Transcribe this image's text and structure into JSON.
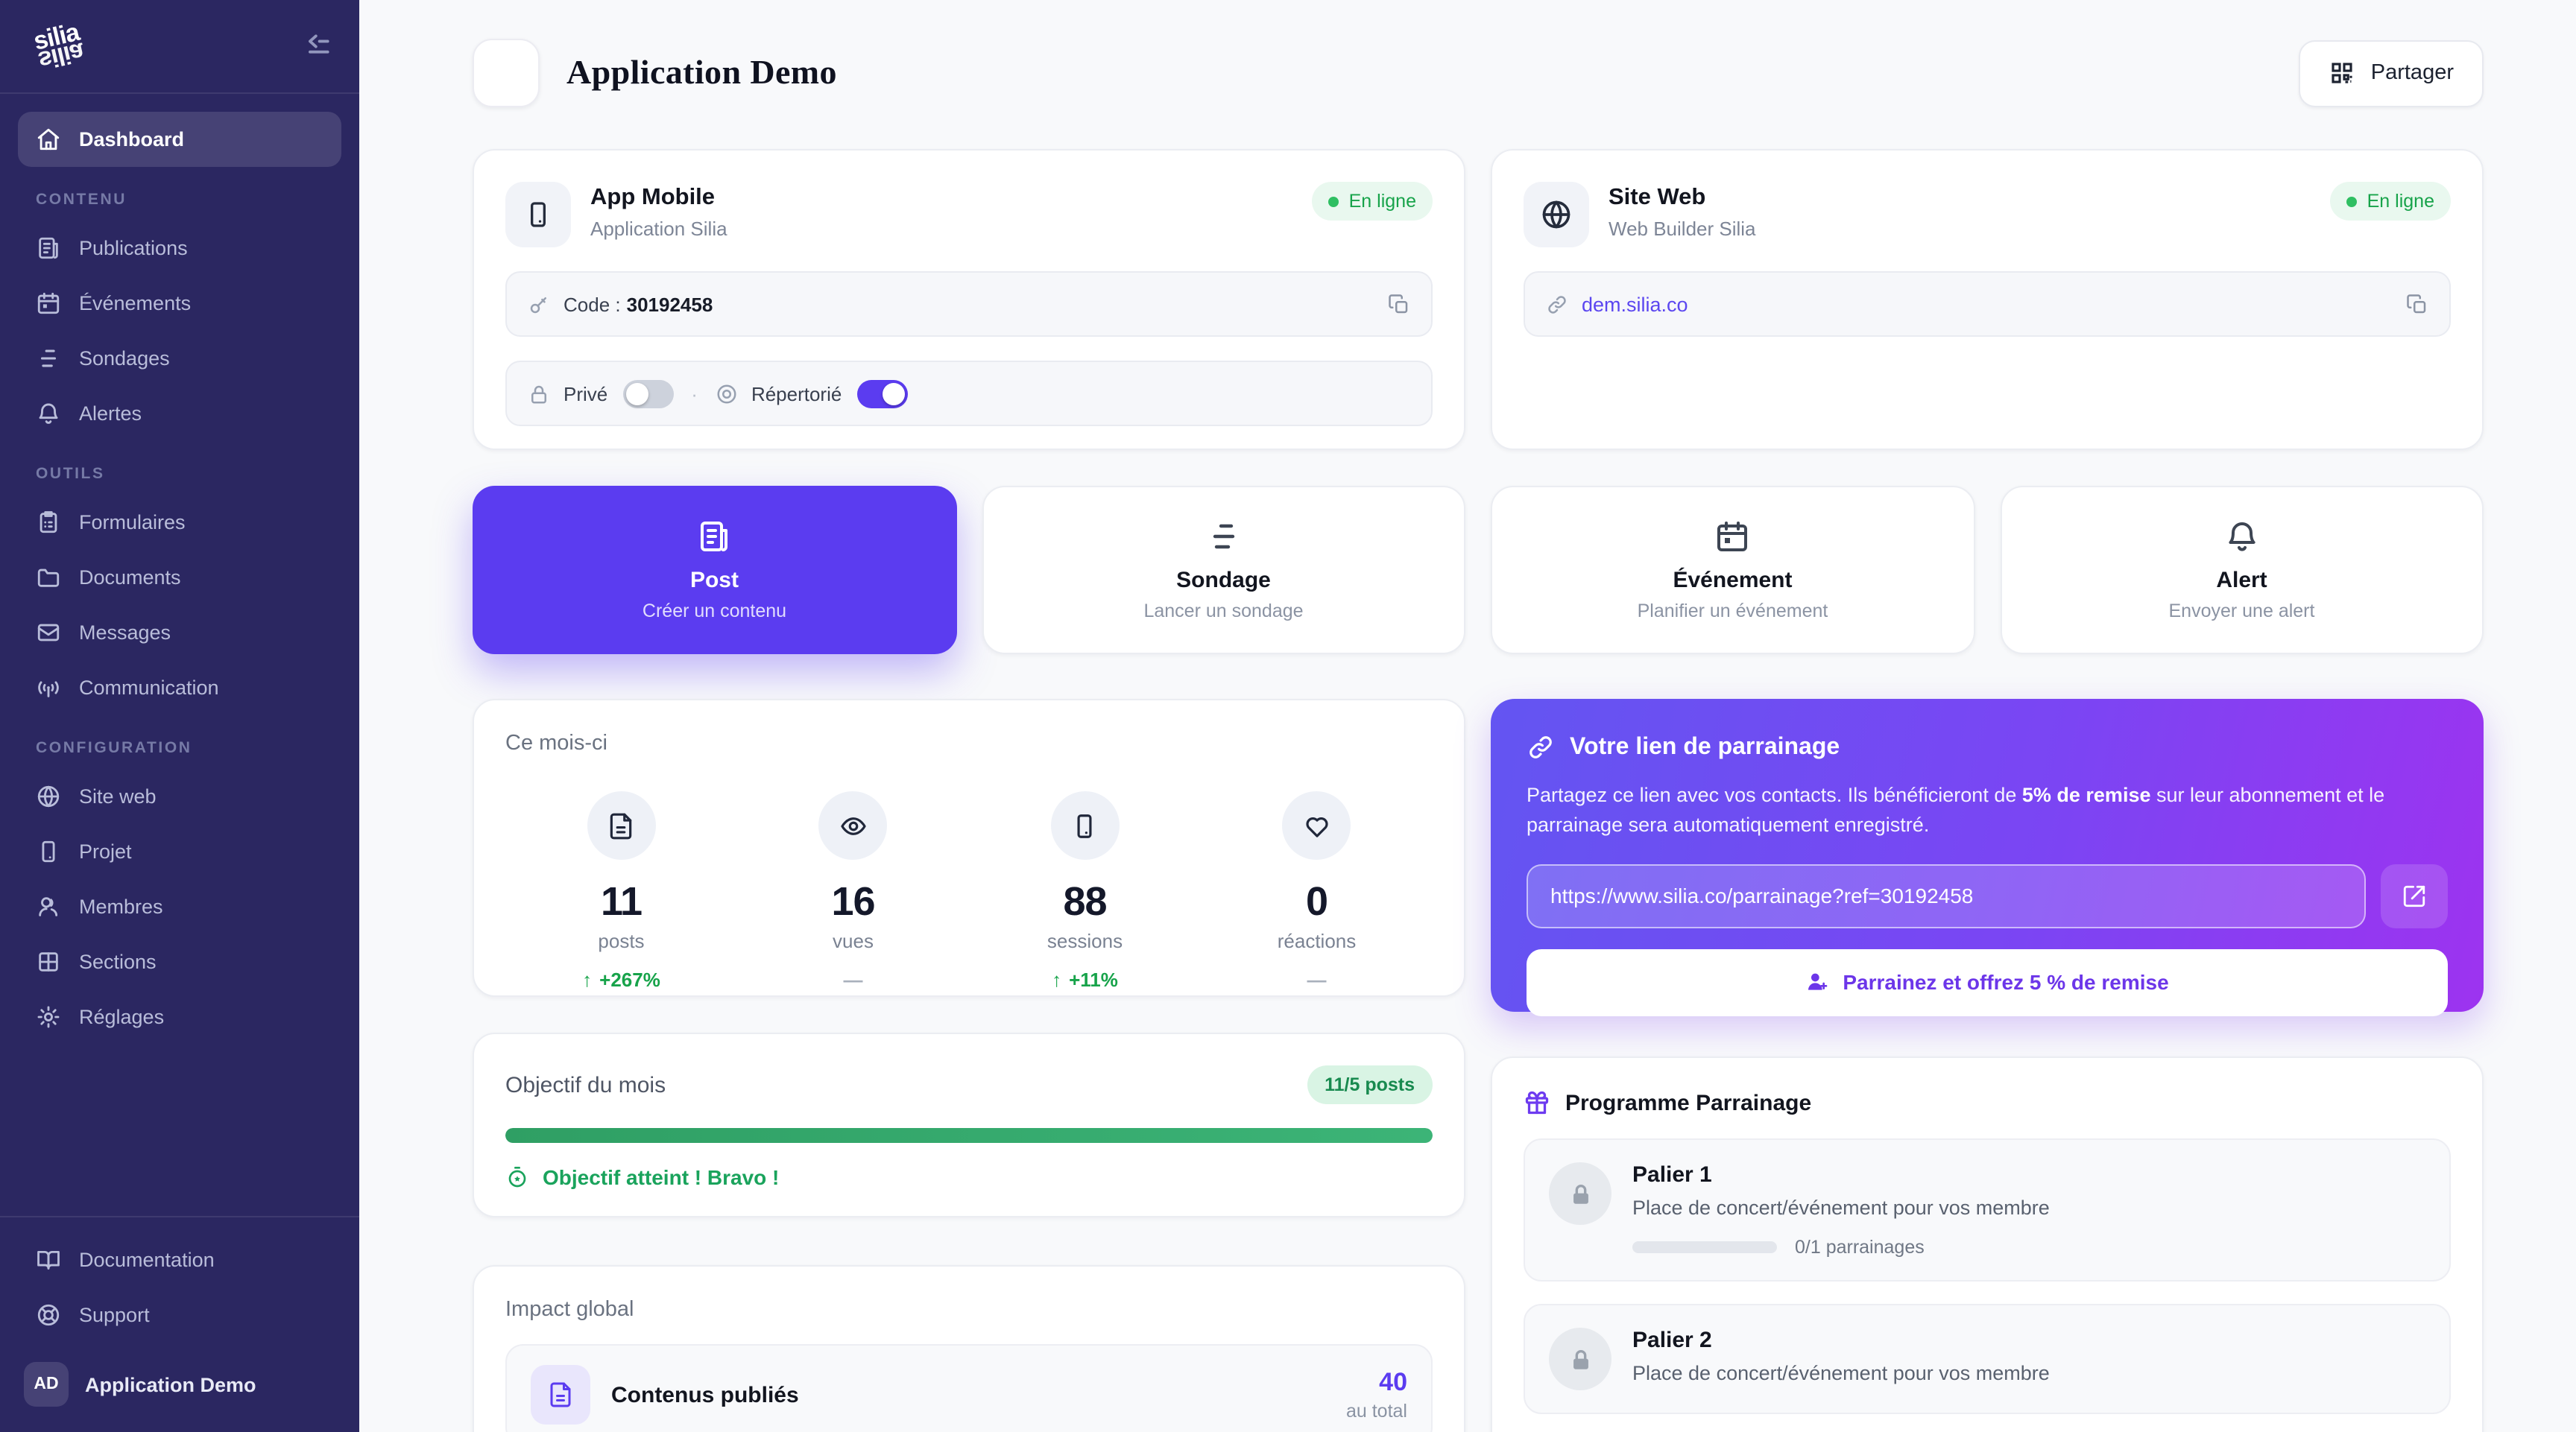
{
  "colors": {
    "accent": "#5b3cf0",
    "sidebar_bg": "#2b2761",
    "green": "#16a34a",
    "gradient_start": "#6355f2",
    "gradient_end": "#9d33f0",
    "page_bg": "#f8f9fb"
  },
  "sidebar": {
    "logo": "silia",
    "sections": [
      {
        "label": "",
        "items": [
          {
            "icon": "home-icon",
            "label": "Dashboard",
            "active": true
          }
        ]
      },
      {
        "label": "CONTENU",
        "items": [
          {
            "icon": "newspaper-icon",
            "label": "Publications"
          },
          {
            "icon": "calendar-icon",
            "label": "Événements"
          },
          {
            "icon": "sliders-icon",
            "label": "Sondages"
          },
          {
            "icon": "bell-icon",
            "label": "Alertes"
          }
        ]
      },
      {
        "label": "OUTILS",
        "items": [
          {
            "icon": "clipboard-icon",
            "label": "Formulaires"
          },
          {
            "icon": "folder-icon",
            "label": "Documents"
          },
          {
            "icon": "mail-icon",
            "label": "Messages"
          },
          {
            "icon": "broadcast-icon",
            "label": "Communication"
          }
        ]
      },
      {
        "label": "CONFIGURATION",
        "items": [
          {
            "icon": "globe-icon",
            "label": "Site web"
          },
          {
            "icon": "smartphone-icon",
            "label": "Projet"
          },
          {
            "icon": "users-icon",
            "label": "Membres"
          },
          {
            "icon": "grid-icon",
            "label": "Sections"
          },
          {
            "icon": "gear-icon",
            "label": "Réglages"
          }
        ]
      }
    ],
    "footer": {
      "items": [
        {
          "icon": "book-open-icon",
          "label": "Documentation"
        },
        {
          "icon": "lifebuoy-icon",
          "label": "Support"
        }
      ],
      "account": {
        "initials": "AD",
        "name": "Application Demo"
      }
    }
  },
  "header": {
    "title": "Application Demo",
    "share_button": "Partager"
  },
  "app_card": {
    "title": "App Mobile",
    "subtitle": "Application Silia",
    "status": "En ligne",
    "code_label": "Code :",
    "code_value": "30192458",
    "private_label": "Privé",
    "private_on": false,
    "listed_label": "Répertorié",
    "listed_on": true,
    "separator": "·"
  },
  "site_card": {
    "title": "Site Web",
    "subtitle": "Web Builder Silia",
    "status": "En ligne",
    "url": "dem.silia.co"
  },
  "actions": [
    {
      "title": "Post",
      "subtitle": "Créer un contenu",
      "primary": true
    },
    {
      "title": "Sondage",
      "subtitle": "Lancer un sondage"
    },
    {
      "title": "Événement",
      "subtitle": "Planifier un événement"
    },
    {
      "title": "Alert",
      "subtitle": "Envoyer une alert"
    }
  ],
  "month": {
    "title": "Ce mois-ci",
    "stats": [
      {
        "icon": "file-text-icon",
        "value": "11",
        "label": "posts",
        "delta": "+267%",
        "trend": "up"
      },
      {
        "icon": "eye-icon",
        "value": "16",
        "label": "vues",
        "delta": "—",
        "trend": "flat"
      },
      {
        "icon": "smartphone-icon",
        "value": "88",
        "label": "sessions",
        "delta": "+11%",
        "trend": "up"
      },
      {
        "icon": "heart-icon",
        "value": "0",
        "label": "réactions",
        "delta": "—",
        "trend": "flat"
      }
    ],
    "up_arrow": "↑"
  },
  "referral": {
    "title": "Votre lien de parrainage",
    "desc_before": "Partagez ce lien avec vos contacts. Ils bénéficieront de ",
    "desc_bold": "5% de remise",
    "desc_after": " sur leur abonnement et le parrainage sera automatiquement enregistré.",
    "url": "https://www.silia.co/parrainage?ref=30192458",
    "button": "Parrainez et offrez 5 % de remise"
  },
  "goal": {
    "title": "Objectif du mois",
    "badge": "11/5 posts",
    "progress_pct": 100,
    "message": "Objectif atteint ! Bravo !"
  },
  "program": {
    "title": "Programme Parrainage",
    "tiers": [
      {
        "title": "Palier 1",
        "desc": "Place de concert/événement pour vos membre",
        "progress_pct": 0,
        "progress_label": "0/1 parrainages"
      },
      {
        "title": "Palier 2",
        "desc": "Place de concert/événement pour vos membre"
      }
    ]
  },
  "impact": {
    "title": "Impact global",
    "row_label": "Contenus publiés",
    "row_value": "40",
    "row_suffix": "au total"
  }
}
